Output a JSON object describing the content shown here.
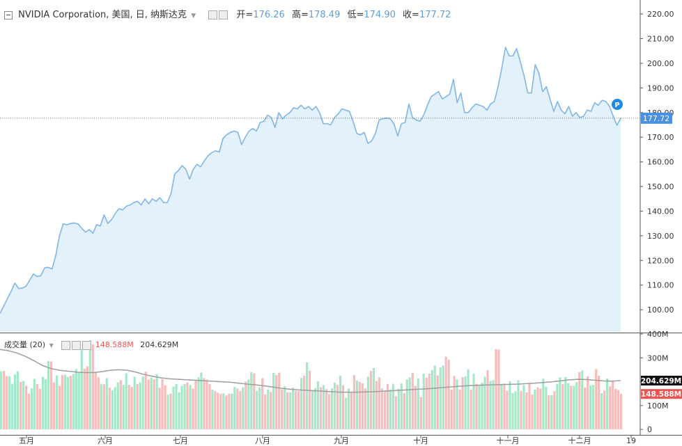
{
  "header": {
    "symbol_title": "NVIDIA Corporation, 美国, 日, 纳斯达克",
    "open_label": "开=",
    "open_value": "176.26",
    "high_label": "高=",
    "high_value": "178.49",
    "low_label": "低=",
    "low_value": "174.90",
    "close_label": "收=",
    "close_value": "177.72"
  },
  "volume_header": {
    "title": "成交量 (20)",
    "last_volume": "148.588M",
    "ma_volume": "204.629M"
  },
  "badges": {
    "last_price": "177.72",
    "p_marker": "P",
    "ma_volume": "204.629M",
    "last_volume": "148.588M"
  },
  "colors": {
    "price_line": "#7fb6e6",
    "price_fill": "#e3f1fb",
    "up_volume": "#a5e8c9",
    "down_volume": "#f7bcbc",
    "ma_line": "#9e9e9e",
    "price_badge": "#4a90e2",
    "volume_down_badge": "#ef5350",
    "header_values": "#5d9fd6"
  },
  "chart_data": [
    {
      "type": "area",
      "title": "NVIDIA Corporation, 美国, 日, 纳斯达克",
      "y_ticks": [
        100,
        110,
        120,
        130,
        140,
        150,
        160,
        170,
        180,
        190,
        200,
        210,
        220
      ],
      "ylim": [
        91,
        224
      ],
      "x_ticks": [
        "五月",
        "六月",
        "七月",
        "八月",
        "九月",
        "十月",
        "十一月",
        "十二月",
        "19"
      ],
      "last_value": 177.72,
      "values": [
        98.5,
        101.5,
        104.5,
        107.5,
        110.8,
        108.6,
        108.8,
        109.5,
        112.0,
        114.5,
        113.5,
        113.8,
        117.0,
        117.2,
        116.5,
        122.0,
        130.0,
        134.8,
        134.5,
        135.0,
        135.2,
        134.8,
        133.0,
        131.5,
        132.5,
        131.0,
        134.5,
        134.0,
        138.5,
        135.0,
        136.5,
        139.0,
        141.0,
        140.5,
        142.0,
        142.5,
        143.5,
        144.0,
        142.5,
        145.0,
        143.0,
        145.0,
        144.0,
        145.5,
        143.5,
        143.5,
        147.0,
        155.0,
        156.5,
        158.5,
        157.0,
        153.0,
        157.0,
        159.0,
        158.0,
        160.5,
        162.5,
        163.8,
        164.5,
        164.0,
        169.5,
        171.0,
        172.0,
        172.5,
        172.0,
        167.0,
        170.0,
        172.5,
        173.5,
        172.5,
        176.0,
        176.5,
        179.0,
        178.0,
        174.0,
        180.0,
        177.5,
        179.0,
        180.0,
        182.0,
        181.5,
        183.0,
        181.5,
        182.5,
        181.0,
        182.5,
        180.0,
        175.5,
        175.5,
        175.0,
        178.0,
        179.5,
        181.5,
        181.0,
        180.5,
        176.5,
        171.5,
        171.0,
        172.0,
        167.5,
        168.5,
        171.5,
        177.0,
        177.5,
        177.8,
        177.5,
        175.5,
        170.5,
        175.5,
        176.0,
        183.5,
        178.0,
        177.0,
        176.5,
        179.0,
        183.0,
        186.5,
        187.5,
        188.5,
        185.5,
        186.5,
        187.5,
        193.5,
        184.0,
        188.0,
        180.0,
        180.0,
        182.0,
        183.5,
        183.0,
        182.5,
        181.0,
        183.5,
        184.5,
        190.5,
        198.0,
        206.5,
        203.0,
        203.0,
        206.0,
        200.5,
        195.0,
        188.0,
        188.0,
        199.5,
        196.0,
        188.5,
        190.5,
        185.5,
        180.5,
        184.5,
        181.0,
        179.5,
        182.5,
        178.5,
        180.0,
        178.0,
        178.5,
        181.0,
        180.5,
        184.0,
        183.0,
        185.0,
        184.5,
        182.5,
        178.5,
        174.9,
        177.72
      ]
    },
    {
      "type": "bar",
      "title": "成交量 (20)",
      "unit": "M",
      "y_ticks": [
        0,
        100,
        200,
        300,
        400
      ],
      "ylim": [
        -20,
        400
      ],
      "x_ticks": [
        "五月",
        "六月",
        "七月",
        "八月",
        "九月",
        "十月",
        "十一月",
        "十二月",
        "19"
      ],
      "series": [
        {
          "name": "volume",
          "values": [
            243,
            245,
            223,
            223,
            191,
            230,
            244,
            199,
            203,
            183,
            150,
            172,
            212,
            190,
            170,
            220,
            210,
            286,
            285,
            197,
            227,
            182,
            228,
            229,
            220,
            224,
            233,
            253,
            239,
            337,
            254,
            265,
            373,
            356,
            241,
            219,
            191,
            189,
            215,
            175,
            164,
            177,
            197,
            206,
            187,
            235,
            187,
            178,
            221,
            190,
            197,
            222,
            242,
            209,
            218,
            210,
            232,
            175,
            210,
            185,
            146,
            150,
            180,
            190,
            155,
            182,
            190,
            197,
            186,
            172,
            204,
            218,
            239,
            215,
            208,
            190,
            167,
            161,
            153,
            149,
            151,
            142,
            150,
            150,
            178,
            171,
            161,
            176,
            201,
            209,
            240,
            235,
            162,
            176,
            215,
            147,
            167,
            157,
            237,
            228,
            238,
            168,
            181,
            155,
            155,
            175,
            162,
            161,
            216,
            225,
            281,
            246,
            161,
            173,
            202,
            177,
            186,
            168,
            148,
            172,
            196,
            187,
            226,
            185,
            133,
            171,
            155,
            228,
            205,
            199,
            193,
            172,
            221,
            245,
            257,
            203,
            218,
            172,
            159,
            190,
            168,
            191,
            139,
            170,
            192,
            152,
            209,
            218,
            237,
            183,
            214,
            136,
            233,
            217,
            234,
            249,
            267,
            226,
            259,
            268,
            305,
            292,
            167,
            224,
            208,
            167,
            219,
            222,
            252,
            167,
            233,
            191,
            185,
            196,
            220,
            249,
            203,
            206,
            336,
            335,
            191,
            192,
            162,
            202,
            152,
            160,
            206,
            161,
            186,
            155,
            195,
            146,
            167,
            176,
            171,
            213,
            179,
            143,
            144,
            160,
            191,
            218,
            190,
            220,
            193,
            183,
            183,
            198,
            240,
            247,
            176,
            222,
            184,
            187,
            253,
            225,
            152,
            163,
            214,
            180,
            205,
            170,
            165,
            148.588
          ]
        },
        {
          "name": "ma",
          "values": [
            335,
            330,
            320,
            306,
            288,
            268,
            255,
            248,
            244,
            240,
            238,
            238,
            242,
            248,
            250,
            248,
            240,
            230,
            222,
            216,
            212,
            210,
            208,
            206,
            204,
            202,
            200,
            198,
            194,
            190,
            187,
            183,
            178,
            173,
            169,
            166,
            164,
            162,
            160,
            158,
            156,
            156,
            156,
            157,
            158,
            160,
            162,
            164,
            166,
            168,
            170,
            172,
            175,
            178,
            181,
            183,
            185,
            186,
            187,
            188,
            189,
            190,
            192,
            194,
            197,
            200,
            204,
            208,
            210,
            209,
            206,
            203,
            202,
            204.629
          ]
        }
      ]
    }
  ]
}
